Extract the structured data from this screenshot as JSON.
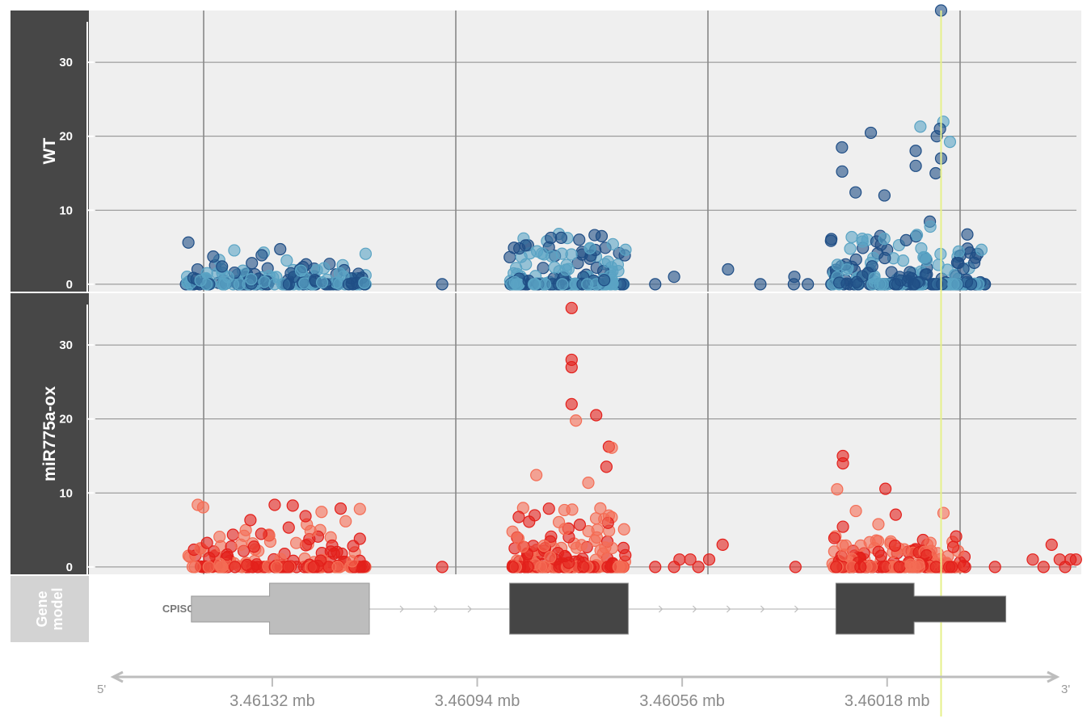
{
  "chart_data": {
    "type": "scatter",
    "title": "",
    "x_unit": "mb",
    "x_direction": "reversed (5' left to 3' right)",
    "xlim_bp": [
      3461660,
      3459820
    ],
    "x_ticks": [
      "3.46132 mb",
      "3.46094 mb",
      "3.46056 mb",
      "3.46018 mb"
    ],
    "x_tick_values_bp": [
      3461320,
      3460940,
      3460560,
      3460180
    ],
    "x_axis_ends": [
      "5'",
      "3'"
    ],
    "highliter_bp": 3460080,
    "panels": [
      {
        "label": "WT",
        "ylim": [
          -1,
          37
        ],
        "y_ticks": [
          0,
          10,
          20,
          30
        ],
        "series": [
          {
            "color": "#5aa4c4",
            "role": "replicate 1"
          },
          {
            "color": "#1f4e86",
            "role": "replicate 2"
          }
        ],
        "clusters": [
          {
            "x_range_bp": [
              3461480,
              3461145
            ],
            "max_y": 8,
            "typical_max": 3
          },
          {
            "x_range_bp": [
              3460880,
              3460665
            ],
            "max_y": 9,
            "typical_max": 5
          },
          {
            "x_range_bp": [
              3460285,
              3459998
            ],
            "max_y": 37,
            "typical_max": 7
          }
        ],
        "isolated_points": [
          {
            "x": 3461005,
            "y": 0
          },
          {
            "x": 3460610,
            "y": 0
          },
          {
            "x": 3460575,
            "y": 1
          },
          {
            "x": 3460475,
            "y": 2
          },
          {
            "x": 3460415,
            "y": 0
          },
          {
            "x": 3460353,
            "y": 0
          },
          {
            "x": 3460352,
            "y": 1
          },
          {
            "x": 3460327,
            "y": 0
          },
          {
            "x": 3460080,
            "y": 37
          },
          {
            "x": 3460082,
            "y": 21
          },
          {
            "x": 3460088,
            "y": 20
          },
          {
            "x": 3460080,
            "y": 17
          },
          {
            "x": 3460127,
            "y": 16
          },
          {
            "x": 3460090,
            "y": 15
          },
          {
            "x": 3460185,
            "y": 12
          }
        ]
      },
      {
        "label": "miR775a-ox",
        "ylim": [
          -1,
          37
        ],
        "y_ticks": [
          0,
          10,
          20,
          30
        ],
        "series": [
          {
            "color": "#f46d55",
            "role": "replicate 1"
          },
          {
            "color": "#e3201b",
            "role": "replicate 2"
          }
        ],
        "clusters": [
          {
            "x_range_bp": [
              3461480,
              3461145
            ],
            "max_y": 12,
            "typical_max": 5
          },
          {
            "x_range_bp": [
              3460880,
              3460665
            ],
            "max_y": 35,
            "typical_max": 8
          },
          {
            "x_range_bp": [
              3460285,
              3460030
            ],
            "max_y": 16,
            "typical_max": 4
          }
        ],
        "isolated_points": [
          {
            "x": 3461005,
            "y": 0
          },
          {
            "x": 3460610,
            "y": 0
          },
          {
            "x": 3460575,
            "y": 0
          },
          {
            "x": 3460565,
            "y": 1
          },
          {
            "x": 3460545,
            "y": 1
          },
          {
            "x": 3460530,
            "y": 0
          },
          {
            "x": 3460510,
            "y": 1
          },
          {
            "x": 3460485,
            "y": 3
          },
          {
            "x": 3460350,
            "y": 0
          },
          {
            "x": 3459980,
            "y": 0
          },
          {
            "x": 3459910,
            "y": 1
          },
          {
            "x": 3459890,
            "y": 0
          },
          {
            "x": 3459875,
            "y": 3
          },
          {
            "x": 3459860,
            "y": 1
          },
          {
            "x": 3459850,
            "y": 0
          },
          {
            "x": 3459840,
            "y": 1
          },
          {
            "x": 3459830,
            "y": 1
          },
          {
            "x": 3460765,
            "y": 35
          },
          {
            "x": 3460765,
            "y": 28
          },
          {
            "x": 3460765,
            "y": 27
          },
          {
            "x": 3460765,
            "y": 22
          },
          {
            "x": 3460262,
            "y": 15
          },
          {
            "x": 3460262,
            "y": 14
          }
        ]
      }
    ],
    "gene_model": {
      "label": "Gene model",
      "gene_name": "CPISCA",
      "exons_bp": [
        {
          "start": 3461470,
          "end": 3461140,
          "coding_start": 3461325,
          "coding_end": 3461140,
          "color": "#bdbdbd"
        },
        {
          "start": 3460880,
          "end": 3460660,
          "color": "#454545"
        },
        {
          "start": 3460275,
          "end": 3459960,
          "coding_start": 3460275,
          "coding_end": 3460130,
          "color": "#454545"
        }
      ]
    }
  }
}
